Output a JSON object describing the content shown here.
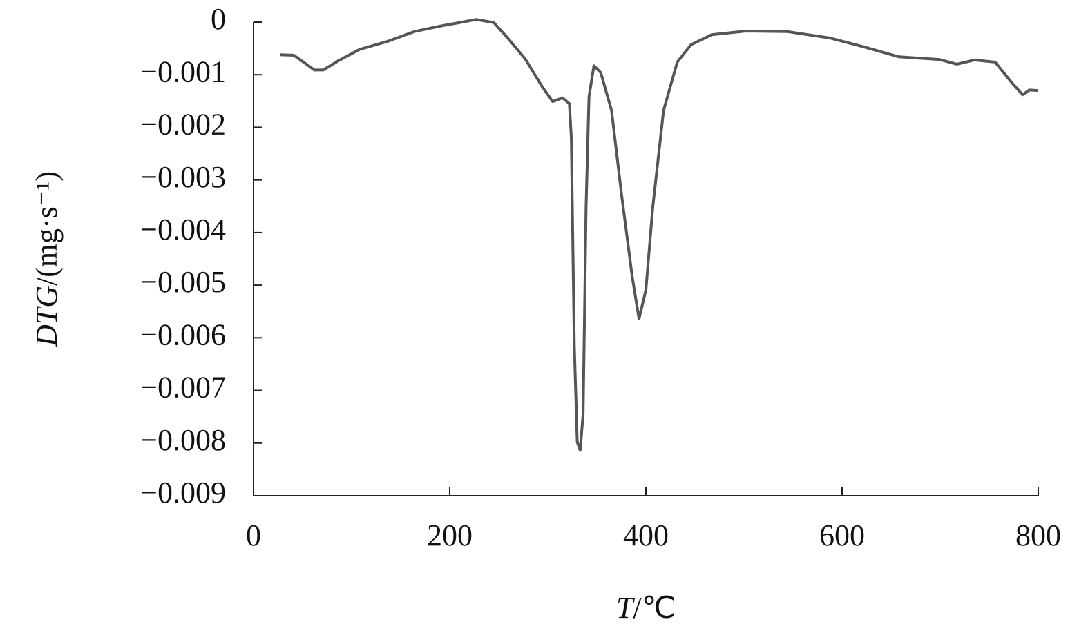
{
  "chart_data": {
    "type": "line",
    "x_label": [
      "T",
      "/℃"
    ],
    "y_label": [
      "DTG",
      "/(mg·s⁻¹)"
    ],
    "xlim": [
      0,
      800
    ],
    "xticks": [
      0,
      200,
      400,
      600,
      800
    ],
    "ylim": [
      -0.009,
      0
    ],
    "yticks": [
      {
        "value": 0,
        "label": "0"
      },
      {
        "value": -0.001,
        "label": "−0.001"
      },
      {
        "value": -0.002,
        "label": "−0.002"
      },
      {
        "value": -0.003,
        "label": "−0.003"
      },
      {
        "value": -0.004,
        "label": "−0.004"
      },
      {
        "value": -0.005,
        "label": "−0.005"
      },
      {
        "value": -0.006,
        "label": "−0.006"
      },
      {
        "value": -0.007,
        "label": "−0.007"
      },
      {
        "value": -0.008,
        "label": "−0.008"
      },
      {
        "value": -0.009,
        "label": "−0.009"
      }
    ],
    "series": [
      {
        "color": "#555555",
        "x": [
          27,
          41,
          51,
          62,
          71,
          87,
          108,
          136,
          164,
          192,
          210,
          227,
          245,
          259,
          277,
          294,
          305,
          315,
          322,
          324,
          327,
          330,
          333,
          336,
          339,
          342,
          347,
          354,
          365,
          375,
          386,
          393,
          400,
          407,
          418,
          432,
          446,
          467,
          502,
          544,
          587,
          622,
          658,
          699,
          717,
          735,
          756,
          773,
          784,
          791,
          800
        ],
        "values": [
          -0.00062,
          -0.00063,
          -0.00076,
          -0.00091,
          -0.00091,
          -0.00073,
          -0.00052,
          -0.00037,
          -0.00018,
          -7e-05,
          -1e-05,
          5e-05,
          -1e-05,
          -0.0003,
          -0.0007,
          -0.00122,
          -0.00151,
          -0.00144,
          -0.00155,
          -0.0022,
          -0.00614,
          -0.00798,
          -0.00814,
          -0.00745,
          -0.00352,
          -0.00142,
          -0.00083,
          -0.00096,
          -0.00168,
          -0.00325,
          -0.00483,
          -0.00564,
          -0.00509,
          -0.00352,
          -0.00168,
          -0.00076,
          -0.00043,
          -0.00024,
          -0.00017,
          -0.00018,
          -0.0003,
          -0.00047,
          -0.00066,
          -0.00071,
          -0.0008,
          -0.00072,
          -0.00076,
          -0.00115,
          -0.00138,
          -0.00129,
          -0.0013
        ]
      }
    ]
  }
}
